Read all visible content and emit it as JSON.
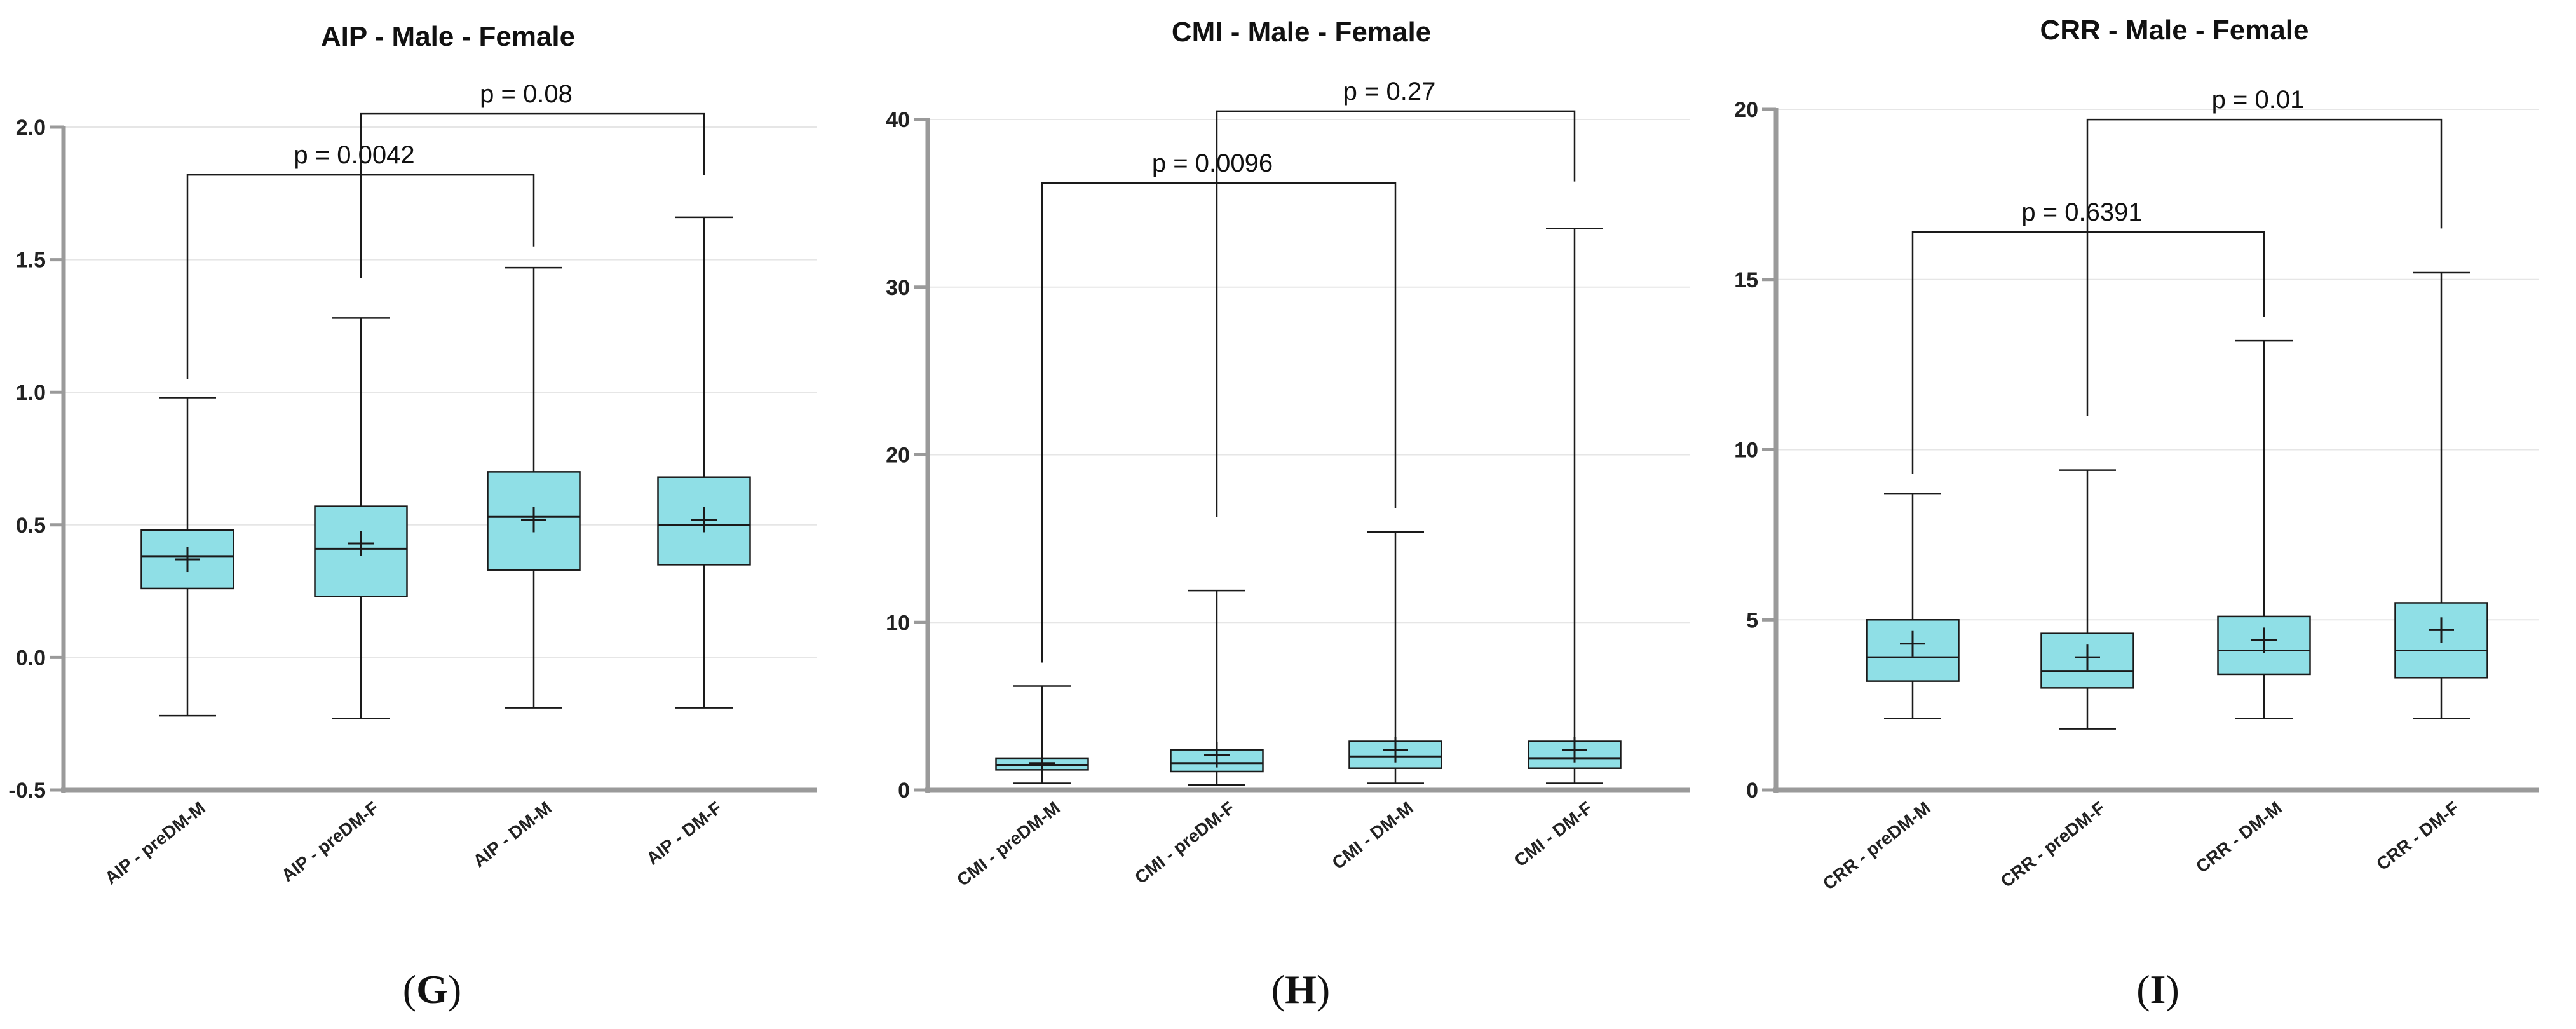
{
  "colors": {
    "box_fill": "#8fdfe6",
    "line": "#1a1a1a",
    "axis": "#9a9a9a",
    "grid": "#e6e6e6"
  },
  "chart_data": [
    {
      "type": "box",
      "title": "AIP - Male - Female",
      "panel_label": "G",
      "ylim": [
        -0.5,
        2.0
      ],
      "yticks": [
        -0.5,
        0.0,
        0.5,
        1.0,
        1.5,
        2.0
      ],
      "ytick_labels": [
        "-0.5",
        "0.0",
        "0.5",
        "1.0",
        "1.5",
        "2.0"
      ],
      "categories": [
        "AIP - preDM-M",
        "AIP - preDM-F",
        "AIP - DM-M",
        "AIP - DM-F"
      ],
      "boxes": [
        {
          "min": -0.22,
          "q1": 0.26,
          "median": 0.38,
          "q3": 0.48,
          "max": 0.98,
          "mean": 0.37
        },
        {
          "min": -0.23,
          "q1": 0.23,
          "median": 0.41,
          "q3": 0.57,
          "max": 1.28,
          "mean": 0.43
        },
        {
          "min": -0.19,
          "q1": 0.33,
          "median": 0.53,
          "q3": 0.7,
          "max": 1.47,
          "mean": 0.52
        },
        {
          "min": -0.19,
          "q1": 0.35,
          "median": 0.5,
          "q3": 0.68,
          "max": 1.66,
          "mean": 0.52
        }
      ],
      "comparisons": [
        {
          "label": "p = 0.0042",
          "from": 0,
          "to": 2,
          "bar_y": 1.82,
          "left_end": 1.05,
          "right_end": 1.55
        },
        {
          "label": "p = 0.08",
          "from": 1,
          "to": 3,
          "bar_y": 2.05,
          "left_end": 1.43,
          "right_end": 1.82
        }
      ]
    },
    {
      "type": "box",
      "title": "CMI - Male - Female",
      "panel_label": "H",
      "ylim": [
        0,
        40
      ],
      "yticks": [
        0,
        10,
        20,
        30,
        40
      ],
      "ytick_labels": [
        "0",
        "10",
        "20",
        "30",
        "40"
      ],
      "categories": [
        "CMI - preDM-M",
        "CMI - preDM-F",
        "CMI - DM-M",
        "CMI - DM-F"
      ],
      "boxes": [
        {
          "min": 0.4,
          "q1": 1.2,
          "median": 1.5,
          "q3": 1.9,
          "max": 6.2,
          "mean": 1.6
        },
        {
          "min": 0.3,
          "q1": 1.1,
          "median": 1.6,
          "q3": 2.4,
          "max": 11.9,
          "mean": 2.1
        },
        {
          "min": 0.4,
          "q1": 1.3,
          "median": 2.0,
          "q3": 2.9,
          "max": 15.4,
          "mean": 2.4
        },
        {
          "min": 0.4,
          "q1": 1.3,
          "median": 1.9,
          "q3": 2.9,
          "max": 33.5,
          "mean": 2.4
        }
      ],
      "comparisons": [
        {
          "label": "p = 0.0096",
          "from": 0,
          "to": 2,
          "bar_y": 36.2,
          "left_end": 7.6,
          "right_end": 16.8
        },
        {
          "label": "p = 0.27",
          "from": 1,
          "to": 3,
          "bar_y": 40.5,
          "left_end": 16.3,
          "right_end": 36.3
        }
      ]
    },
    {
      "type": "box",
      "title": "CRR - Male - Female",
      "panel_label": "I",
      "ylim": [
        0,
        20
      ],
      "yticks": [
        0,
        5,
        10,
        15,
        20
      ],
      "ytick_labels": [
        "0",
        "5",
        "10",
        "15",
        "20"
      ],
      "categories": [
        "CRR - preDM-M",
        "CRR - preDM-F",
        "CRR - DM-M",
        "CRR - DM-F"
      ],
      "boxes": [
        {
          "min": 2.1,
          "q1": 3.2,
          "median": 3.9,
          "q3": 5.0,
          "max": 8.7,
          "mean": 4.3
        },
        {
          "min": 1.8,
          "q1": 3.0,
          "median": 3.5,
          "q3": 4.6,
          "max": 9.4,
          "mean": 3.9
        },
        {
          "min": 2.1,
          "q1": 3.4,
          "median": 4.1,
          "q3": 5.1,
          "max": 13.2,
          "mean": 4.4
        },
        {
          "min": 2.1,
          "q1": 3.3,
          "median": 4.1,
          "q3": 5.5,
          "max": 15.2,
          "mean": 4.7
        }
      ],
      "comparisons": [
        {
          "label": "p = 0.6391",
          "from": 0,
          "to": 2,
          "bar_y": 16.4,
          "left_end": 9.3,
          "right_end": 13.9
        },
        {
          "label": "p = 0.01",
          "from": 1,
          "to": 3,
          "bar_y": 19.7,
          "left_end": 11.0,
          "right_end": 16.5
        }
      ]
    }
  ]
}
